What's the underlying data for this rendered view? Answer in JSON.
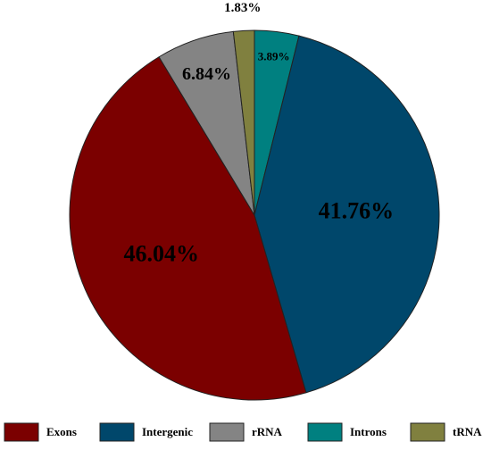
{
  "chart_data": {
    "type": "pie",
    "categories": [
      "Exons",
      "Intergenic",
      "rRNA",
      "Introns",
      "tRNA"
    ],
    "values": [
      46.04,
      41.76,
      6.84,
      3.89,
      1.83
    ],
    "value_labels": [
      "46.04%",
      "41.76%",
      "6.84%",
      "3.89%",
      "1.83%"
    ],
    "colors": [
      "#7b0000",
      "#00476b",
      "#848484",
      "#008080",
      "#80803f"
    ],
    "legend": "bottom"
  }
}
